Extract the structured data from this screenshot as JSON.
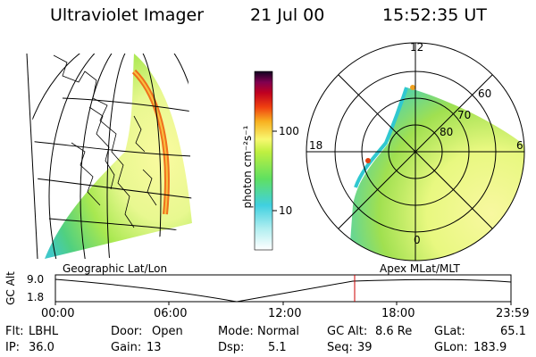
{
  "header": {
    "instrument": "Ultraviolet Imager",
    "date": "21 Jul 00",
    "time": "15:52:35 UT"
  },
  "geo_panel": {
    "caption": "Geographic Lat/Lon"
  },
  "apex_panel": {
    "caption": "Apex MLat/MLT",
    "mlt_labels": [
      "12",
      "18",
      "6",
      "0"
    ],
    "mlat_labels": [
      "60",
      "70",
      "80"
    ]
  },
  "colorbar": {
    "unit": "photon cm⁻²s⁻¹",
    "ticks": [
      "100",
      "10"
    ]
  },
  "altitude_plot": {
    "axis_label": "GC Alt",
    "y_ticks": [
      "9.0",
      "1.8"
    ],
    "x_ticks": [
      "00:00",
      "06:00",
      "12:00",
      "18:00",
      "23:59"
    ],
    "marker_time": "15:52"
  },
  "footer": {
    "flt_label": "Flt:",
    "flt_value": "LBHL",
    "door_label": "Door:",
    "door_value": "Open",
    "mode_label": "Mode:",
    "mode_value": "Normal",
    "gcalt_label": "GC Alt:",
    "gcalt_value": "8.6 Re",
    "glat_label": "GLat:",
    "glat_value": "65.1",
    "ip_label": "IP:",
    "ip_value": "36.0",
    "gain_label": "Gain:",
    "gain_value": "13",
    "dsp_label": "Dsp:",
    "dsp_value": "5.1",
    "seq_label": "Seq:",
    "seq_value": "39",
    "glon_label": "GLon:",
    "glon_value": "183.9"
  },
  "colors": {
    "marker_line": "#cc0000",
    "emission_low": "#3fd0c8",
    "emission_mid": "#8fe030",
    "emission_high": "#f0f080"
  }
}
